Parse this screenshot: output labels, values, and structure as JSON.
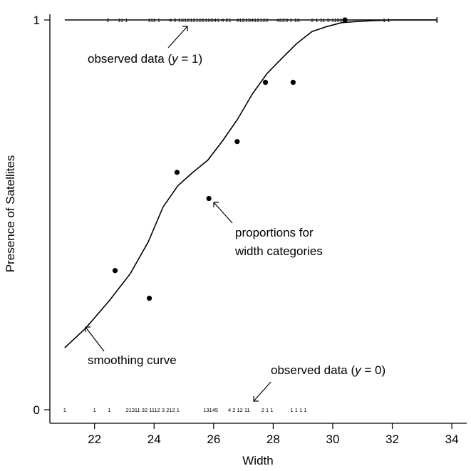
{
  "chart_data": {
    "type": "scatter",
    "title": "",
    "xlabel": "Width",
    "ylabel": "Presence of Satellites",
    "xlim": [
      20.5,
      34.5
    ],
    "ylim": [
      0,
      1
    ],
    "x_ticks": [
      22,
      24,
      26,
      28,
      30,
      32,
      34
    ],
    "y_ticks": [
      0,
      1
    ],
    "grid": false,
    "series": [
      {
        "kind": "points",
        "x": [
          22.69,
          23.84,
          24.77,
          25.84,
          26.79,
          27.74,
          28.67,
          30.41
        ],
        "y": [
          0.357,
          0.286,
          0.609,
          0.542,
          0.688,
          0.84,
          0.84,
          1.0
        ]
      },
      {
        "kind": "curve",
        "x": [
          21.0,
          21.7,
          22.5,
          23.2,
          23.8,
          24.3,
          24.8,
          25.3,
          25.8,
          26.3,
          26.8,
          27.3,
          27.8,
          28.3,
          28.8,
          29.3,
          29.8,
          30.3,
          30.8,
          31.3,
          32.0,
          33.5
        ],
        "y": [
          0.159,
          0.209,
          0.28,
          0.349,
          0.43,
          0.52,
          0.575,
          0.609,
          0.64,
          0.69,
          0.745,
          0.81,
          0.863,
          0.902,
          0.94,
          0.97,
          0.983,
          0.993,
          0.996,
          0.998,
          1.0,
          1.0
        ]
      }
    ],
    "count_labels": {
      "top": [
        {
          "x": 22.45,
          "text": "2"
        },
        {
          "x": 22.95,
          "text": "11 1"
        },
        {
          "x": 24.0,
          "text": "111 1"
        },
        {
          "x": 24.95,
          "text": "4 3  161212"
        },
        {
          "x": 26.0,
          "text": "12216241 4  21"
        },
        {
          "x": 27.3,
          "text": "41213412122"
        },
        {
          "x": 28.5,
          "text": "4223 1  16"
        },
        {
          "x": 29.8,
          "text": "2 1 11 3 1101"
        },
        {
          "x": 31.8,
          "text": "1 1"
        },
        {
          "x": 33.5,
          "text": "1"
        }
      ],
      "bottom": [
        {
          "x": 21.0,
          "text": "1"
        },
        {
          "x": 22.0,
          "text": "1"
        },
        {
          "x": 22.5,
          "text": "1"
        },
        {
          "x": 23.2,
          "text": "213"
        },
        {
          "x": 24.1,
          "text": "11 32 1112 3 212 1"
        },
        {
          "x": 25.9,
          "text": "13145"
        },
        {
          "x": 26.85,
          "text": "4  2 12 11"
        },
        {
          "x": 27.8,
          "text": "2  1 1"
        },
        {
          "x": 28.85,
          "text": "1 1 1 1"
        }
      ]
    },
    "annotations": [
      {
        "text": "observed data (y = 1)",
        "id": "observed-1"
      },
      {
        "text": "proportions for",
        "id": "proportions-line1"
      },
      {
        "text": "width categories",
        "id": "proportions-line2"
      },
      {
        "text": "smoothing curve",
        "id": "smoothing"
      },
      {
        "text": "observed data (y = 0)",
        "id": "observed-0"
      }
    ]
  }
}
